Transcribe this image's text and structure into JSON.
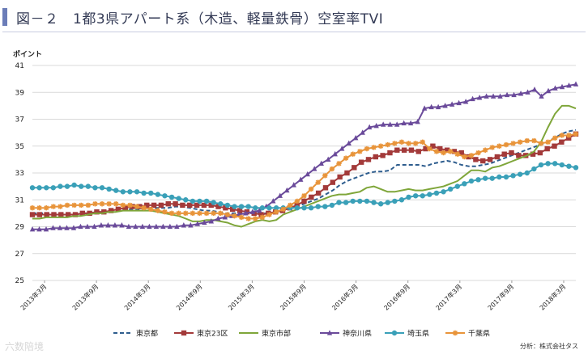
{
  "header": {
    "title": "図－２　1都3県アパート系（木造、軽量鉄骨）空室率TVI"
  },
  "watermark": "六数陪境",
  "source_note": "分析：株式会社タス",
  "chart_data": {
    "type": "line",
    "title": "",
    "ylabel": "ポイント",
    "xlabel": "",
    "ylim": [
      25,
      41
    ],
    "yticks": [
      25,
      27,
      29,
      31,
      33,
      35,
      37,
      39,
      41
    ],
    "grid": true,
    "x_tick_labels": [
      "2013年3月",
      "2013年9月",
      "2014年3月",
      "2014年9月",
      "2015年3月",
      "2015年9月",
      "2016年3月",
      "2016年9月",
      "2017年3月",
      "2017年9月",
      "2018年3月"
    ],
    "legend_position": "bottom",
    "series": [
      {
        "name": "東京都",
        "color": "#2e5d8e",
        "style": "dashed",
        "marker": "none",
        "values": [
          30.0,
          30.0,
          30.0,
          30.0,
          29.9,
          29.9,
          29.9,
          30.0,
          30.0,
          30.1,
          30.1,
          30.2,
          30.2,
          30.3,
          30.3,
          30.3,
          30.4,
          30.4,
          30.4,
          30.4,
          30.5,
          30.5,
          30.4,
          30.3,
          30.2,
          30.2,
          30.1,
          30.0,
          30.0,
          30.0,
          30.0,
          30.0,
          30.0,
          30.0,
          30.1,
          30.2,
          30.4,
          30.5,
          30.7,
          30.9,
          31.1,
          31.4,
          31.7,
          32.1,
          32.4,
          32.6,
          32.8,
          33.0,
          33.1,
          33.1,
          33.2,
          33.6,
          33.6,
          33.6,
          33.6,
          33.5,
          33.7,
          33.8,
          33.9,
          33.8,
          33.6,
          33.5,
          33.5,
          33.6,
          33.7,
          33.9,
          34.1,
          34.3,
          34.5,
          34.7,
          34.9,
          35.1,
          35.3,
          35.6,
          35.9,
          36.1,
          36.2
        ]
      },
      {
        "name": "東京23区",
        "color": "#a33a3a",
        "style": "solid",
        "marker": "square",
        "values": [
          29.9,
          29.9,
          29.9,
          29.9,
          29.9,
          29.9,
          29.9,
          30.0,
          30.0,
          30.1,
          30.1,
          30.2,
          30.3,
          30.4,
          30.5,
          30.5,
          30.6,
          30.6,
          30.6,
          30.7,
          30.7,
          30.6,
          30.6,
          30.6,
          30.6,
          30.6,
          30.5,
          30.4,
          30.3,
          30.2,
          30.1,
          30.0,
          29.9,
          30.0,
          30.1,
          30.2,
          30.4,
          30.6,
          30.9,
          31.2,
          31.5,
          31.9,
          32.3,
          32.7,
          33.0,
          33.4,
          33.8,
          34.0,
          34.2,
          34.3,
          34.5,
          34.7,
          34.7,
          34.7,
          34.6,
          34.8,
          35.0,
          34.8,
          34.7,
          34.6,
          34.5,
          34.2,
          34.0,
          33.9,
          34.0,
          34.2,
          34.4,
          34.5,
          34.3,
          34.3,
          34.4,
          34.5,
          34.8,
          35.0,
          35.3,
          35.6,
          35.9
        ]
      },
      {
        "name": "東京市部",
        "color": "#7fa63a",
        "style": "solid",
        "marker": "none",
        "values": [
          29.6,
          29.6,
          29.7,
          29.7,
          29.7,
          29.7,
          29.8,
          29.8,
          29.9,
          30.0,
          30.0,
          30.1,
          30.1,
          30.2,
          30.2,
          30.2,
          30.2,
          30.2,
          30.1,
          30.0,
          29.9,
          29.8,
          29.6,
          29.4,
          29.4,
          29.5,
          29.5,
          29.4,
          29.3,
          29.1,
          29.0,
          29.2,
          29.4,
          29.5,
          29.4,
          29.5,
          29.9,
          30.1,
          30.3,
          30.5,
          30.7,
          30.9,
          31.1,
          31.3,
          31.4,
          31.4,
          31.5,
          31.6,
          31.9,
          32.0,
          31.8,
          31.6,
          31.6,
          31.7,
          31.8,
          31.7,
          31.7,
          31.8,
          31.9,
          32.0,
          32.2,
          32.4,
          32.8,
          33.2,
          33.2,
          33.1,
          33.4,
          33.5,
          33.7,
          33.9,
          34.1,
          34.3,
          34.6,
          35.3,
          36.4,
          37.4,
          38.0,
          38.0,
          37.8
        ]
      },
      {
        "name": "神奈川県",
        "color": "#6a4a9a",
        "style": "solid",
        "marker": "triangle",
        "values": [
          28.8,
          28.8,
          28.8,
          28.9,
          28.9,
          28.9,
          28.9,
          29.0,
          29.0,
          29.0,
          29.1,
          29.1,
          29.1,
          29.1,
          29.0,
          29.0,
          29.0,
          29.0,
          29.0,
          29.0,
          29.0,
          29.0,
          29.1,
          29.1,
          29.2,
          29.3,
          29.4,
          29.6,
          29.7,
          29.8,
          29.9,
          30.0,
          30.1,
          30.2,
          30.5,
          30.9,
          31.3,
          31.7,
          32.1,
          32.5,
          32.9,
          33.3,
          33.7,
          34.0,
          34.4,
          34.8,
          35.2,
          35.6,
          36.0,
          36.4,
          36.5,
          36.6,
          36.6,
          36.6,
          36.7,
          36.7,
          36.8,
          37.8,
          37.9,
          37.9,
          38.0,
          38.1,
          38.2,
          38.3,
          38.5,
          38.6,
          38.7,
          38.7,
          38.7,
          38.8,
          38.8,
          38.9,
          39.0,
          39.2,
          38.7,
          39.1,
          39.3,
          39.4,
          39.5,
          39.6
        ]
      },
      {
        "name": "埼玉県",
        "color": "#3aa0b8",
        "style": "solid",
        "marker": "circle",
        "values": [
          31.9,
          31.9,
          31.9,
          31.9,
          32.0,
          32.0,
          32.1,
          32.0,
          32.0,
          31.9,
          31.9,
          31.8,
          31.7,
          31.6,
          31.6,
          31.6,
          31.5,
          31.5,
          31.4,
          31.3,
          31.2,
          31.1,
          31.0,
          30.9,
          30.9,
          30.9,
          30.8,
          30.7,
          30.6,
          30.5,
          30.5,
          30.5,
          30.4,
          30.4,
          30.4,
          30.4,
          30.4,
          30.4,
          30.4,
          30.4,
          30.4,
          30.5,
          30.5,
          30.6,
          30.8,
          30.8,
          30.9,
          30.9,
          30.9,
          30.8,
          30.7,
          30.8,
          30.9,
          31.0,
          31.2,
          31.3,
          31.3,
          31.4,
          31.5,
          31.6,
          31.8,
          32.0,
          32.2,
          32.4,
          32.5,
          32.6,
          32.6,
          32.7,
          32.7,
          32.8,
          32.9,
          33.0,
          33.3,
          33.6,
          33.7,
          33.7,
          33.6,
          33.5,
          33.4
        ]
      },
      {
        "name": "千葉県",
        "color": "#e8943a",
        "style": "solid",
        "marker": "star",
        "values": [
          30.4,
          30.4,
          30.4,
          30.5,
          30.5,
          30.6,
          30.6,
          30.6,
          30.6,
          30.7,
          30.7,
          30.7,
          30.7,
          30.6,
          30.6,
          30.5,
          30.4,
          30.3,
          30.2,
          30.1,
          30.0,
          30.0,
          30.0,
          30.0,
          30.0,
          30.0,
          30.0,
          30.0,
          29.9,
          29.8,
          29.7,
          29.6,
          29.6,
          29.7,
          29.9,
          30.1,
          30.3,
          30.6,
          30.9,
          31.3,
          31.8,
          32.3,
          32.8,
          33.3,
          33.7,
          34.1,
          34.4,
          34.6,
          34.8,
          34.9,
          35.0,
          35.1,
          35.2,
          35.3,
          35.2,
          35.2,
          35.3,
          34.8,
          34.6,
          34.5,
          34.6,
          34.4,
          34.2,
          34.3,
          34.5,
          34.7,
          34.9,
          35.0,
          35.1,
          35.2,
          35.3,
          35.4,
          35.4,
          35.2,
          35.3,
          35.6,
          35.8,
          35.8,
          35.9
        ]
      }
    ]
  }
}
